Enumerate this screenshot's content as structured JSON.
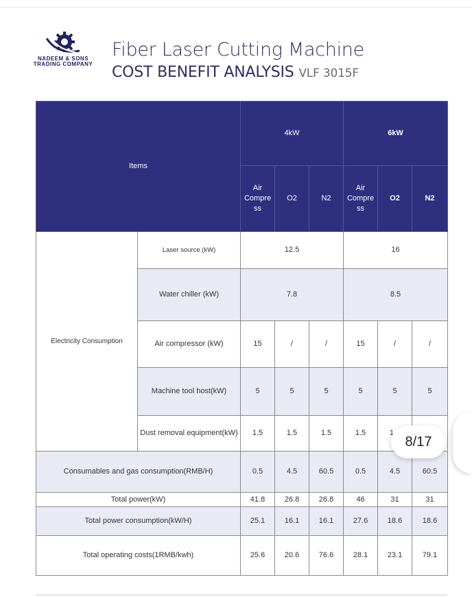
{
  "logo": {
    "line1": "NADEEM & SONS",
    "line2": "TRADING COMPANY",
    "icon": "gear-icon"
  },
  "title": {
    "main": "Fiber Laser Cutting Machine",
    "sub": "COST BENEFIT ANALYSIS",
    "model": "VLF 3015F"
  },
  "colors": {
    "header": "#2e2f7f",
    "stripe": "#e8ebf4"
  },
  "table": {
    "items_header": "Items",
    "groups": [
      "4kW",
      "6kW"
    ],
    "subcols": [
      "Air Compre ss",
      "O2",
      "N2",
      "Air Compre ss",
      "O2",
      "N2"
    ],
    "electricity_label": "Electricity Consumption",
    "rows": {
      "laser": {
        "label": "Laser source (kW)",
        "v4": "12.5",
        "v6": "16"
      },
      "chiller": {
        "label": "Water chiller (kW)",
        "v4": "7.8",
        "v6": "8.5"
      },
      "aircomp": {
        "label": "Air compressor (kW)",
        "vals": [
          "15",
          "/",
          "/",
          "15",
          "/",
          "/"
        ]
      },
      "machine": {
        "label": "Machine tool host(kW)",
        "vals": [
          "5",
          "5",
          "5",
          "5",
          "5",
          "5"
        ]
      },
      "dust": {
        "label": "Dust removal equipment(kW)",
        "vals": [
          "1.5",
          "1.5",
          "1.5",
          "1.5",
          "1.5",
          "1.5"
        ]
      },
      "consumables": {
        "label": "Consumables and gas consumption(RMB/H)",
        "vals": [
          "0.5",
          "4.5",
          "60.5",
          "0.5",
          "4.5",
          "60.5"
        ]
      },
      "total_power": {
        "label": "Total power(kW)",
        "vals": [
          "41.8",
          "26.8",
          "26.8",
          "46",
          "31",
          "31"
        ]
      },
      "total_consumption": {
        "label": "Total power consumption(kW/H)",
        "vals": [
          "25.1",
          "16.1",
          "16.1",
          "27.6",
          "18.6",
          "18.6"
        ]
      },
      "total_cost": {
        "label": "Total operating costs(1RMB/kwh)",
        "vals": [
          "25.6",
          "20.6",
          "76.6",
          "28.1",
          "23.1",
          "79.1"
        ]
      }
    }
  },
  "page_indicator": "8/17"
}
